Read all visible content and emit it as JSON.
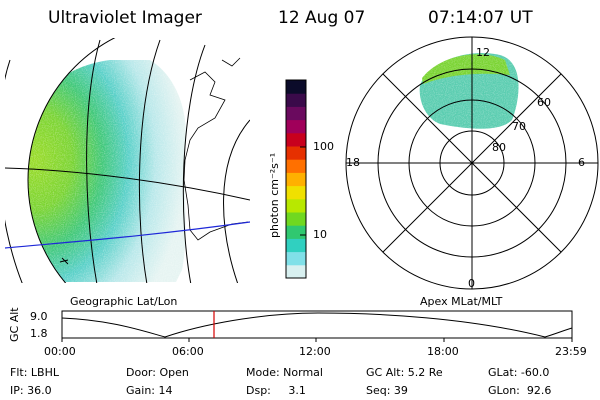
{
  "header": {
    "title": "Ultraviolet Imager",
    "date": "12 Aug 07",
    "time": "07:14:07 UT"
  },
  "map_left": {
    "label": "Geographic Lat/Lon"
  },
  "map_right": {
    "label": "Apex MLat/MLT",
    "mlt_labels": [
      "12",
      "18",
      "6",
      "0"
    ],
    "lat_labels": [
      "60",
      "70",
      "80"
    ]
  },
  "colorbar": {
    "unit_label": "photon cm⁻²s⁻¹",
    "ticks": [
      "100",
      "10"
    ],
    "colors": [
      "#0b0b2a",
      "#3a0a4a",
      "#6a0a5e",
      "#a0005a",
      "#c8001e",
      "#e63000",
      "#ff7000",
      "#ffb000",
      "#f0e000",
      "#b8e800",
      "#70d820",
      "#30c870",
      "#30d0c0",
      "#80e0e8",
      "#d8f0f0"
    ]
  },
  "gc_alt_plot": {
    "ylabel": "GC Alt",
    "y_ticks": [
      "9.0",
      "1.8"
    ],
    "x_ticks": [
      "00:00",
      "06:00",
      "12:00",
      "18:00",
      "23:59"
    ],
    "marker_color": "#d40000"
  },
  "status": {
    "filter": "Flt: LBHL",
    "ip": "IP: 36.0",
    "door": "Door: Open",
    "gain": "Gain: 14",
    "mode": "Mode: Normal",
    "dsp": "Dsp:     3.1",
    "gc_alt": "GC Alt: 5.2 Re",
    "seq": "Seq: 39",
    "glat": "GLat: -60.0",
    "glon": "GLon:  92.6"
  }
}
